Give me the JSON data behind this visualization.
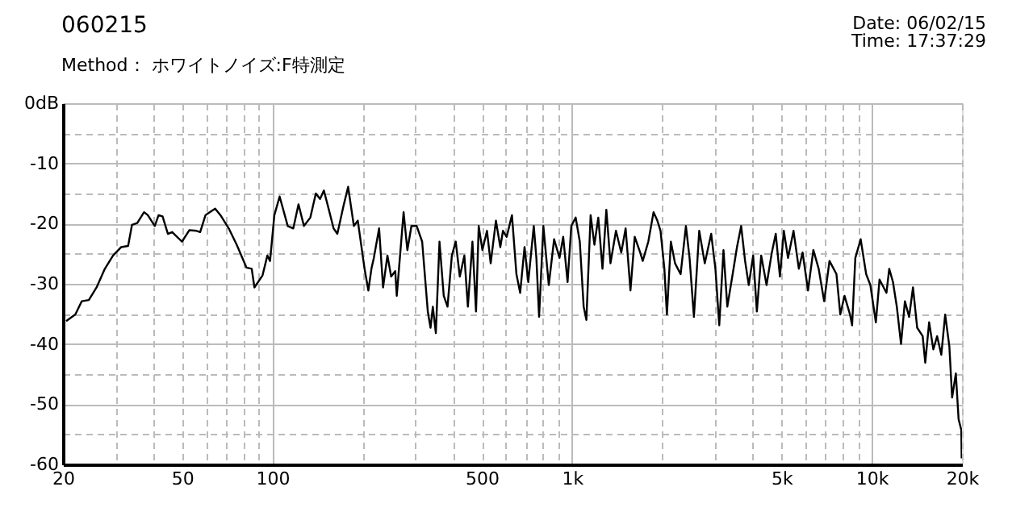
{
  "chart_data": {
    "type": "line",
    "title": "060215",
    "subtitle": "Method： ホワイトノイズ:F特測定",
    "annotations": [
      "Date: 06/02/15",
      "Time: 17:37:29"
    ],
    "series": [
      {
        "color": "#000000",
        "x": [
          20.5,
          22,
          23.1,
          24.4,
          25.9,
          27.6,
          29.4,
          31.3,
          33,
          34,
          35.4,
          37.3,
          38.4,
          40.5,
          41.7,
          43,
          44.8,
          46.3,
          49.9,
          52.8,
          55.8,
          57.4,
          59.8,
          64.4,
          67.1,
          71.5,
          76,
          81.9,
          85.3,
          87.1,
          92.7,
          96.2,
          98.2,
          101.5,
          105.7,
          112.5,
          117.4,
          122.2,
          127.4,
          133.8,
          139.6,
          144.2,
          148.5,
          153.4,
          160,
          164.7,
          172.4,
          178.9,
          187,
          192.7,
          203,
          209,
          214,
          218,
          227,
          234,
          242,
          249,
          257,
          260,
          274,
          282,
          291,
          303,
          316,
          330,
          337,
          343,
          351,
          361,
          373,
          384,
          397,
          409,
          422,
          437,
          449,
          465,
          478,
          488,
          502,
          520,
          535,
          557,
          576,
          588,
          605,
          630,
          652,
          671,
          694,
          714,
          745,
          760,
          776,
          802,
          836,
          871,
          908,
          934,
          966,
          994,
          1028,
          1061,
          1093,
          1116,
          1153,
          1187,
          1223,
          1263,
          1301,
          1343,
          1401,
          1459,
          1509,
          1566,
          1618,
          1687,
          1721,
          1796,
          1870,
          1925,
          1973,
          2032,
          2072,
          2136,
          2206,
          2302,
          2398,
          2466,
          2550,
          2656,
          2772,
          2912,
          3008,
          3098,
          3200,
          3296,
          3434,
          3550,
          3666,
          3778,
          3886,
          4020,
          4136,
          4276,
          4456,
          4640,
          4782,
          4938,
          5088,
          5254,
          5482,
          5710,
          5876,
          6128,
          6384,
          6650,
          6936,
          7226,
          7624,
          7852,
          8110,
          8460,
          8598,
          8814,
          9182,
          9578,
          9892,
          10318,
          10614,
          11196,
          11436,
          11768,
          12122,
          12520,
          12900,
          13324,
          13726,
          14176,
          14786,
          15082,
          15538,
          16048,
          16520,
          17062,
          17576,
          18152,
          18540,
          19078,
          19486,
          19900,
          19950
        ],
        "values": [
          -36.2,
          -35.1,
          -32.9,
          -32.7,
          -30.6,
          -27.5,
          -25.3,
          -23.9,
          -23.7,
          -20.2,
          -19.9,
          -18.1,
          -18.6,
          -20.4,
          -18.6,
          -18.8,
          -21.7,
          -21.4,
          -23,
          -21.1,
          -21.2,
          -21.4,
          -18.6,
          -17.5,
          -18.6,
          -20.8,
          -23.5,
          -27.3,
          -27.5,
          -30.6,
          -28.6,
          -25.3,
          -26.2,
          -18.6,
          -15.5,
          -20.4,
          -20.8,
          -16.8,
          -20.4,
          -19,
          -15,
          -15.9,
          -14.5,
          -17.2,
          -20.8,
          -21.7,
          -17.2,
          -13.9,
          -20.4,
          -19.5,
          -27.5,
          -31.1,
          -27.5,
          -25.7,
          -20.8,
          -30.6,
          -25.3,
          -28.8,
          -27.9,
          -32,
          -18.1,
          -24.4,
          -20.4,
          -20.4,
          -23,
          -34.6,
          -37.3,
          -33.8,
          -38.2,
          -23,
          -32,
          -33.8,
          -25.3,
          -23,
          -28.8,
          -25.3,
          -33.8,
          -23,
          -34.6,
          -20.4,
          -24.4,
          -21.2,
          -26.6,
          -19.5,
          -23.9,
          -21.2,
          -22.2,
          -18.6,
          -28.4,
          -31.5,
          -23.9,
          -29.7,
          -20.4,
          -25.7,
          -35.5,
          -20.4,
          -30.2,
          -22.6,
          -25.7,
          -22.2,
          -29.7,
          -20.4,
          -19,
          -23,
          -33.8,
          -36,
          -18.6,
          -23.5,
          -19,
          -27.5,
          -17.7,
          -26.6,
          -21.2,
          -24.8,
          -20.8,
          -31.1,
          -22.2,
          -24.8,
          -26.2,
          -23,
          -18.1,
          -19.5,
          -21.2,
          -27.5,
          -35.1,
          -23,
          -26.6,
          -28.4,
          -20.4,
          -25.7,
          -35.5,
          -21.2,
          -26.6,
          -21.7,
          -27.5,
          -36.9,
          -24.4,
          -33.8,
          -28.4,
          -23.9,
          -20.4,
          -26.2,
          -30.2,
          -25.3,
          -34.6,
          -25.3,
          -30.2,
          -24.8,
          -21.7,
          -28.8,
          -21.2,
          -25.7,
          -21.2,
          -27.5,
          -24.8,
          -31.1,
          -24.4,
          -27.5,
          -32.9,
          -26.2,
          -28.4,
          -35.1,
          -32,
          -35.1,
          -36.9,
          -25.7,
          -22.6,
          -28.4,
          -30.2,
          -36.4,
          -29.3,
          -31.5,
          -27.5,
          -29.7,
          -33.8,
          -40,
          -32.9,
          -35.5,
          -30.6,
          -37.3,
          -38.7,
          -43.1,
          -36.4,
          -40.9,
          -38.7,
          -41.8,
          -35.1,
          -40.4,
          -48.9,
          -44.9,
          -52.5,
          -54.3,
          -59
        ]
      }
    ],
    "log": "x",
    "xlim": [
      20,
      20000
    ],
    "xticks": [
      20,
      {
        "value": 30,
        "label": null
      },
      {
        "value": 40,
        "label": null
      },
      50,
      {
        "value": 60,
        "label": null
      },
      {
        "value": 70,
        "label": null
      },
      {
        "value": 80,
        "label": null
      },
      {
        "value": 90,
        "label": null
      },
      100,
      {
        "value": 200,
        "label": null
      },
      {
        "value": 300,
        "label": null
      },
      {
        "value": 400,
        "label": null
      },
      500,
      {
        "value": 600,
        "label": null
      },
      {
        "value": 700,
        "label": null
      },
      {
        "value": 800,
        "label": null
      },
      {
        "value": 900,
        "label": null
      },
      {
        "value": 1000,
        "label": "1k"
      },
      {
        "value": 2000,
        "label": null
      },
      {
        "value": 3000,
        "label": null
      },
      {
        "value": 4000,
        "label": null
      },
      {
        "value": 5000,
        "label": "5k"
      },
      {
        "value": 6000,
        "label": null
      },
      {
        "value": 7000,
        "label": null
      },
      {
        "value": 8000,
        "label": null
      },
      {
        "value": 9000,
        "label": null
      },
      {
        "value": 10000,
        "label": "10k"
      },
      {
        "value": 20000,
        "label": "20k"
      }
    ],
    "ylim": [
      -60,
      0
    ],
    "yticks": [
      -60,
      {
        "value": -55,
        "label": null
      },
      -50,
      {
        "value": -45,
        "label": null
      },
      -40,
      {
        "value": -35,
        "label": null
      },
      -30,
      {
        "value": -25,
        "label": null
      },
      -20,
      {
        "value": -15,
        "label": null
      },
      -10,
      {
        "value": -5,
        "label": null
      },
      {
        "value": 0,
        "label": "0dB"
      }
    ],
    "grid": true
  }
}
